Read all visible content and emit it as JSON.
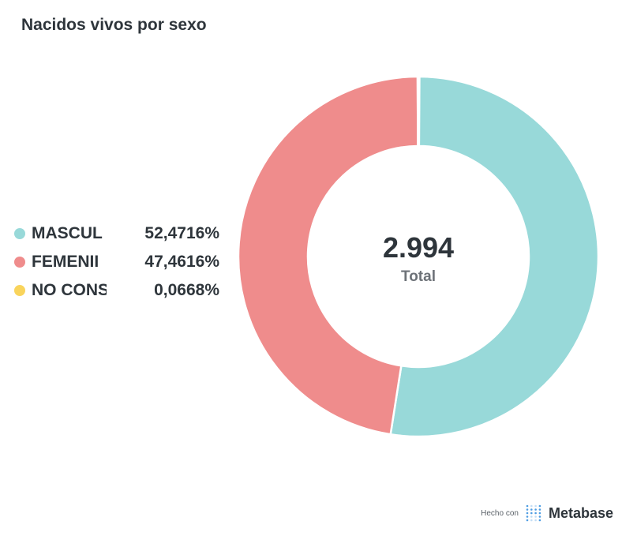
{
  "title": "Nacidos vivos por sexo",
  "chart_data": {
    "type": "pie",
    "title": "Nacidos vivos por sexo",
    "total_value": "2.994",
    "total_label": "Total",
    "legend_position": "left",
    "slices": [
      {
        "label": "MASCUL",
        "percent_text": "52,4716%",
        "value": 52.4716,
        "color": "#98d9d9"
      },
      {
        "label": "FEMENII",
        "percent_text": "47,4616%",
        "value": 47.4616,
        "color": "#ef8c8c"
      },
      {
        "label": "NO CONS",
        "percent_text": "0,0668%",
        "value": 0.0668,
        "color": "#f9d45c"
      }
    ]
  },
  "footer": {
    "made_with": "Hecho con",
    "brand": "Metabase",
    "brand_color": "#509ee3"
  }
}
